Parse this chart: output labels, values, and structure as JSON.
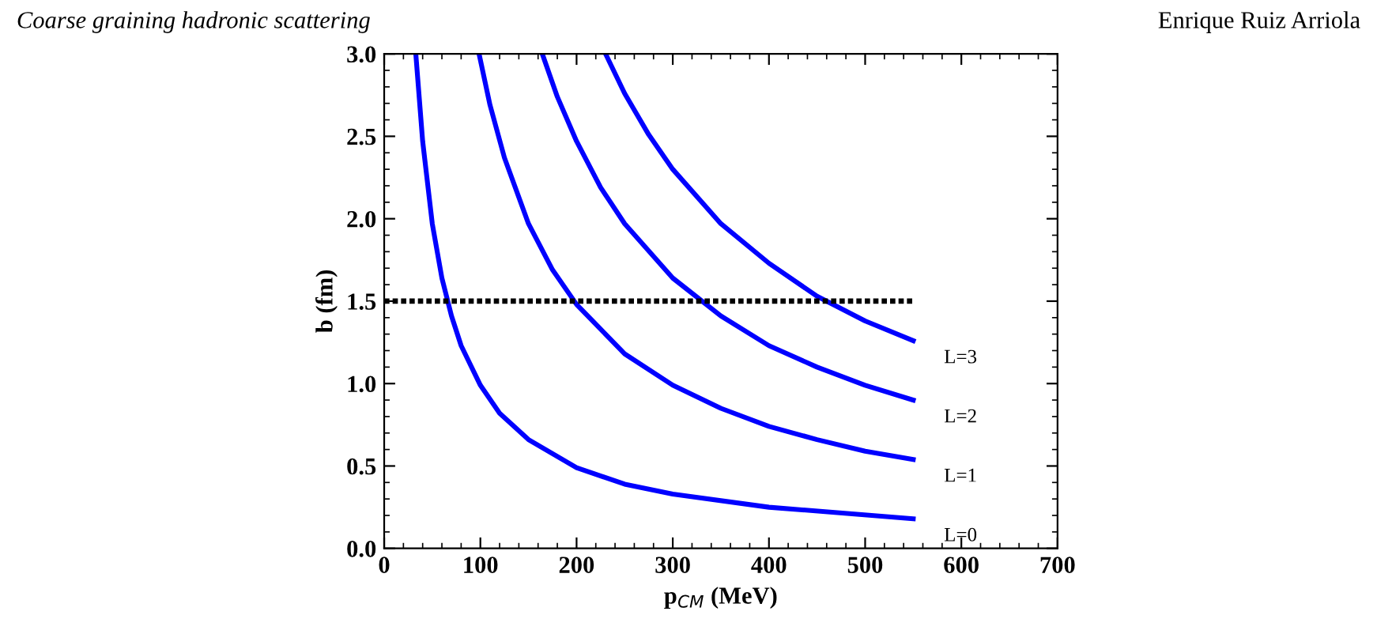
{
  "chart_data": {
    "type": "line",
    "xlabel": "p$_{CM}$ (MeV)",
    "ylabel": "b (fm)",
    "annotations": [
      "Coarse graining hadronic scattering",
      "Enrique Ruiz Arriola"
    ],
    "xlim": [
      0,
      700
    ],
    "xticks": [
      0,
      100,
      200,
      300,
      400,
      500,
      600,
      700
    ],
    "ylim": [
      0,
      3
    ],
    "yticks": [
      {
        "value": 0,
        "label": "0.0"
      },
      0.5,
      {
        "value": 1,
        "label": "1.0"
      },
      1.5,
      {
        "value": 2,
        "label": "2.0"
      },
      2.5,
      {
        "value": 3,
        "label": "3.0"
      }
    ],
    "grid": false,
    "marker": "none",
    "series": [
      {
        "name": "L=0",
        "color": "#0000ff",
        "line_style": "solid",
        "x": [
          33,
          40,
          50,
          60,
          70,
          80,
          100,
          120,
          150,
          200,
          250,
          300,
          400,
          550
        ],
        "values": [
          2.99,
          2.47,
          1.97,
          1.64,
          1.41,
          1.23,
          0.99,
          0.82,
          0.66,
          0.49,
          0.39,
          0.33,
          0.25,
          0.18
        ]
      },
      {
        "name": "L=1",
        "color": "#0000ff",
        "line_style": "solid",
        "x": [
          99,
          110,
          125,
          150,
          175,
          200,
          250,
          300,
          350,
          400,
          450,
          500,
          550
        ],
        "values": [
          2.99,
          2.69,
          2.37,
          1.97,
          1.69,
          1.48,
          1.18,
          0.99,
          0.85,
          0.74,
          0.66,
          0.59,
          0.54
        ]
      },
      {
        "name": "L=2",
        "color": "#0000ff",
        "line_style": "solid",
        "x": [
          165,
          180,
          200,
          225,
          250,
          300,
          350,
          400,
          450,
          500,
          550
        ],
        "values": [
          2.99,
          2.74,
          2.47,
          2.19,
          1.97,
          1.64,
          1.41,
          1.23,
          1.1,
          0.99,
          0.9
        ]
      },
      {
        "name": "L=3",
        "color": "#0000ff",
        "line_style": "solid",
        "x": [
          231,
          250,
          275,
          300,
          350,
          400,
          450,
          500,
          550
        ],
        "values": [
          2.99,
          2.76,
          2.51,
          2.3,
          1.97,
          1.73,
          1.53,
          1.38,
          1.26
        ]
      },
      {
        "color": "#000000",
        "line_style": "dotted",
        "x": [
          0,
          550
        ],
        "values": [
          1.5,
          1.5
        ]
      }
    ]
  }
}
